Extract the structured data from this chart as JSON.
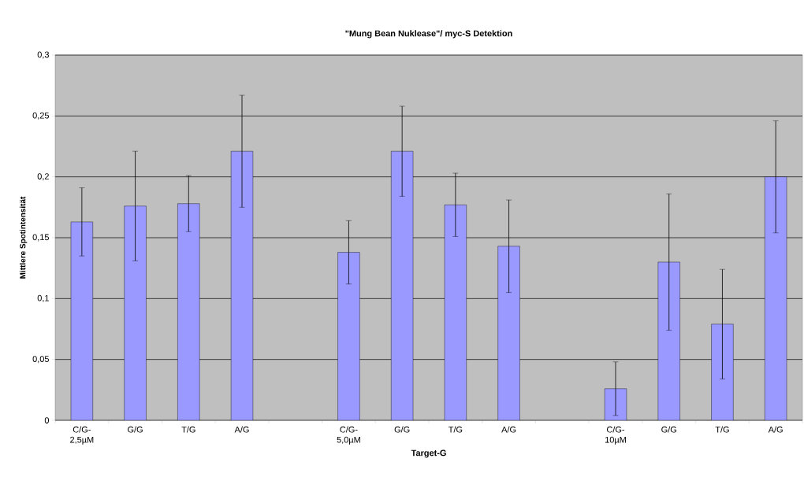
{
  "chart_data": {
    "type": "bar",
    "title": "\"Mung Bean Nuklease\"/ myc-S Detektion",
    "xlabel": "Target-G",
    "ylabel": "Mittlere Spotintensität",
    "categories": [
      "C/G-2,5µM",
      "G/G",
      "T/G",
      "A/G",
      null,
      "C/G-5,0µM",
      "G/G",
      "T/G",
      "A/G",
      null,
      "C/G-10µM",
      "G/G",
      "T/G",
      "A/G"
    ],
    "values": [
      0.163,
      0.176,
      0.178,
      0.221,
      null,
      0.138,
      0.221,
      0.177,
      0.143,
      null,
      0.026,
      0.13,
      0.079,
      0.2
    ],
    "errors": [
      0.028,
      0.045,
      0.023,
      0.046,
      null,
      0.026,
      0.037,
      0.026,
      0.038,
      null,
      0.022,
      0.056,
      0.045,
      0.046
    ],
    "color": "#9999ff",
    "ylim": [
      0,
      0.3
    ],
    "yticks": [
      0,
      {
        "value": 0.05,
        "label": "0,05"
      },
      {
        "value": 0.1,
        "label": "0,1"
      },
      {
        "value": 0.15,
        "label": "0,15"
      },
      {
        "value": 0.2,
        "label": "0,2"
      },
      {
        "value": 0.25,
        "label": "0,25"
      },
      {
        "value": 0.3,
        "label": "0,3"
      }
    ],
    "grid": "y"
  }
}
